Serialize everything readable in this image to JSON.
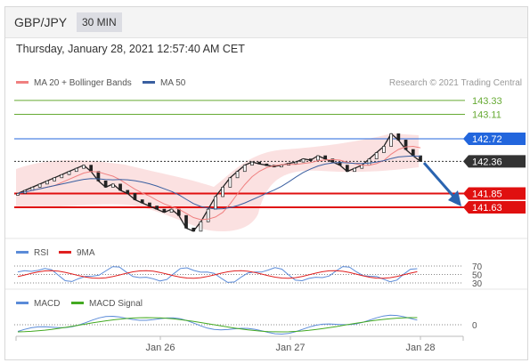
{
  "header": {
    "symbol": "GBP/JPY",
    "timeframe": "30 MIN"
  },
  "date_line": "Thursday, January 28, 2021 12:57:40 AM CET",
  "legend": {
    "main": [
      {
        "label": "MA 20 + Bollinger Bands",
        "color": "#f08080"
      },
      {
        "label": "MA 50",
        "color": "#3a5fa0"
      }
    ],
    "rsi": [
      {
        "label": "RSI",
        "color": "#5b8bd8"
      },
      {
        "label": "9MA",
        "color": "#e02020"
      }
    ],
    "macd": [
      {
        "label": "MACD",
        "color": "#5b8bd8"
      },
      {
        "label": "MACD Signal",
        "color": "#44aa22"
      }
    ]
  },
  "credit": "Research © 2021 Trading Central",
  "chart_data": {
    "type": "line",
    "x_ticks": [
      "Jan 26",
      "Jan 27",
      "Jan 28"
    ],
    "levels": [
      {
        "value": 143.33,
        "label": "143.33",
        "color": "#66aa33",
        "kind": "resistance"
      },
      {
        "value": 143.11,
        "label": "143.11",
        "color": "#66aa33",
        "kind": "resistance"
      },
      {
        "value": 142.72,
        "label": "142.72",
        "color": "#2266dd",
        "kind": "pivot"
      },
      {
        "value": 142.36,
        "label": "142.36",
        "color": "#333333",
        "kind": "last"
      },
      {
        "value": 141.85,
        "label": "141.85",
        "color": "#e01010",
        "kind": "support"
      },
      {
        "value": 141.63,
        "label": "141.63",
        "color": "#e01010",
        "kind": "support"
      }
    ],
    "price_ylim": [
      141.0,
      143.5
    ],
    "price": [
      141.85,
      141.9,
      141.95,
      142.0,
      142.05,
      142.1,
      142.15,
      142.2,
      142.25,
      142.3,
      142.2,
      142.05,
      141.95,
      142.0,
      141.9,
      141.85,
      141.75,
      141.7,
      141.65,
      141.6,
      141.55,
      141.6,
      141.5,
      141.3,
      141.25,
      141.4,
      141.6,
      141.8,
      141.95,
      142.1,
      142.2,
      142.3,
      142.35,
      142.32,
      142.3,
      142.28,
      142.3,
      142.33,
      142.35,
      142.4,
      142.38,
      142.45,
      142.4,
      142.35,
      142.3,
      142.2,
      142.25,
      142.3,
      142.4,
      142.5,
      142.6,
      142.8,
      142.7,
      142.55,
      142.45,
      142.36
    ],
    "rsi": {
      "levels": [
        70,
        50,
        30
      ],
      "ylim": [
        20,
        80
      ]
    },
    "macd": {
      "levels": [
        0
      ]
    }
  }
}
